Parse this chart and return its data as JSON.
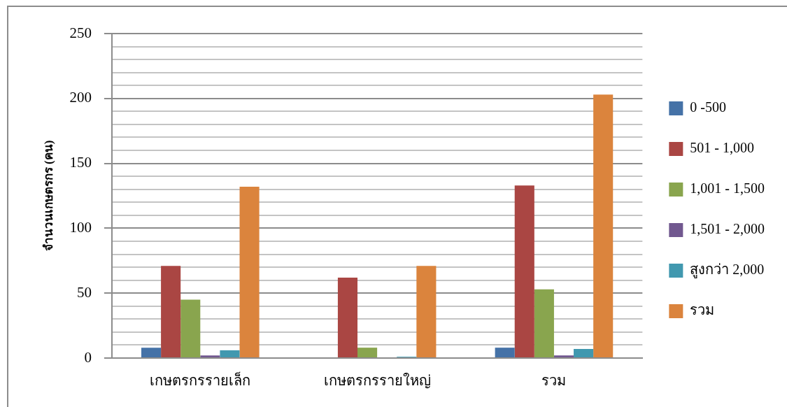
{
  "chart_data": {
    "type": "bar",
    "ylabel": "จำนวนเกษตรกร (คน)",
    "categories": [
      "เกษตรกรรายเล็ก",
      "เกษตรกรรายใหญ่",
      "รวม"
    ],
    "series": [
      {
        "name": "0 -500",
        "color": "#4572a7",
        "values": [
          8,
          0,
          8
        ]
      },
      {
        "name": "501 - 1,000",
        "color": "#aa4643",
        "values": [
          71,
          62,
          133
        ]
      },
      {
        "name": "1,001 - 1,500",
        "color": "#89a54e",
        "values": [
          45,
          8,
          53
        ]
      },
      {
        "name": "1,501 - 2,000",
        "color": "#71588f",
        "values": [
          2,
          0,
          2
        ]
      },
      {
        "name": "สูงกว่า 2,000",
        "color": "#4198af",
        "values": [
          6,
          1,
          7
        ]
      },
      {
        "name": "รวม",
        "color": "#db843d",
        "values": [
          132,
          71,
          203
        ]
      }
    ],
    "ylim": [
      0,
      250
    ],
    "yticks": [
      0,
      {
        "value": 10,
        "label": null
      },
      {
        "value": 20,
        "label": null
      },
      {
        "value": 30,
        "label": null
      },
      {
        "value": 40,
        "label": null
      },
      50,
      {
        "value": 60,
        "label": null
      },
      {
        "value": 70,
        "label": null
      },
      {
        "value": 80,
        "label": null
      },
      {
        "value": 90,
        "label": null
      },
      100,
      {
        "value": 110,
        "label": null
      },
      {
        "value": 120,
        "label": null
      },
      {
        "value": 130,
        "label": null
      },
      {
        "value": 140,
        "label": null
      },
      150,
      {
        "value": 160,
        "label": null
      },
      {
        "value": 170,
        "label": null
      },
      {
        "value": 180,
        "label": null
      },
      {
        "value": 190,
        "label": null
      },
      200,
      {
        "value": 210,
        "label": null
      },
      {
        "value": 220,
        "label": null
      },
      {
        "value": 230,
        "label": null
      },
      {
        "value": 240,
        "label": null
      },
      250
    ],
    "grid": "y",
    "legend": "right"
  }
}
